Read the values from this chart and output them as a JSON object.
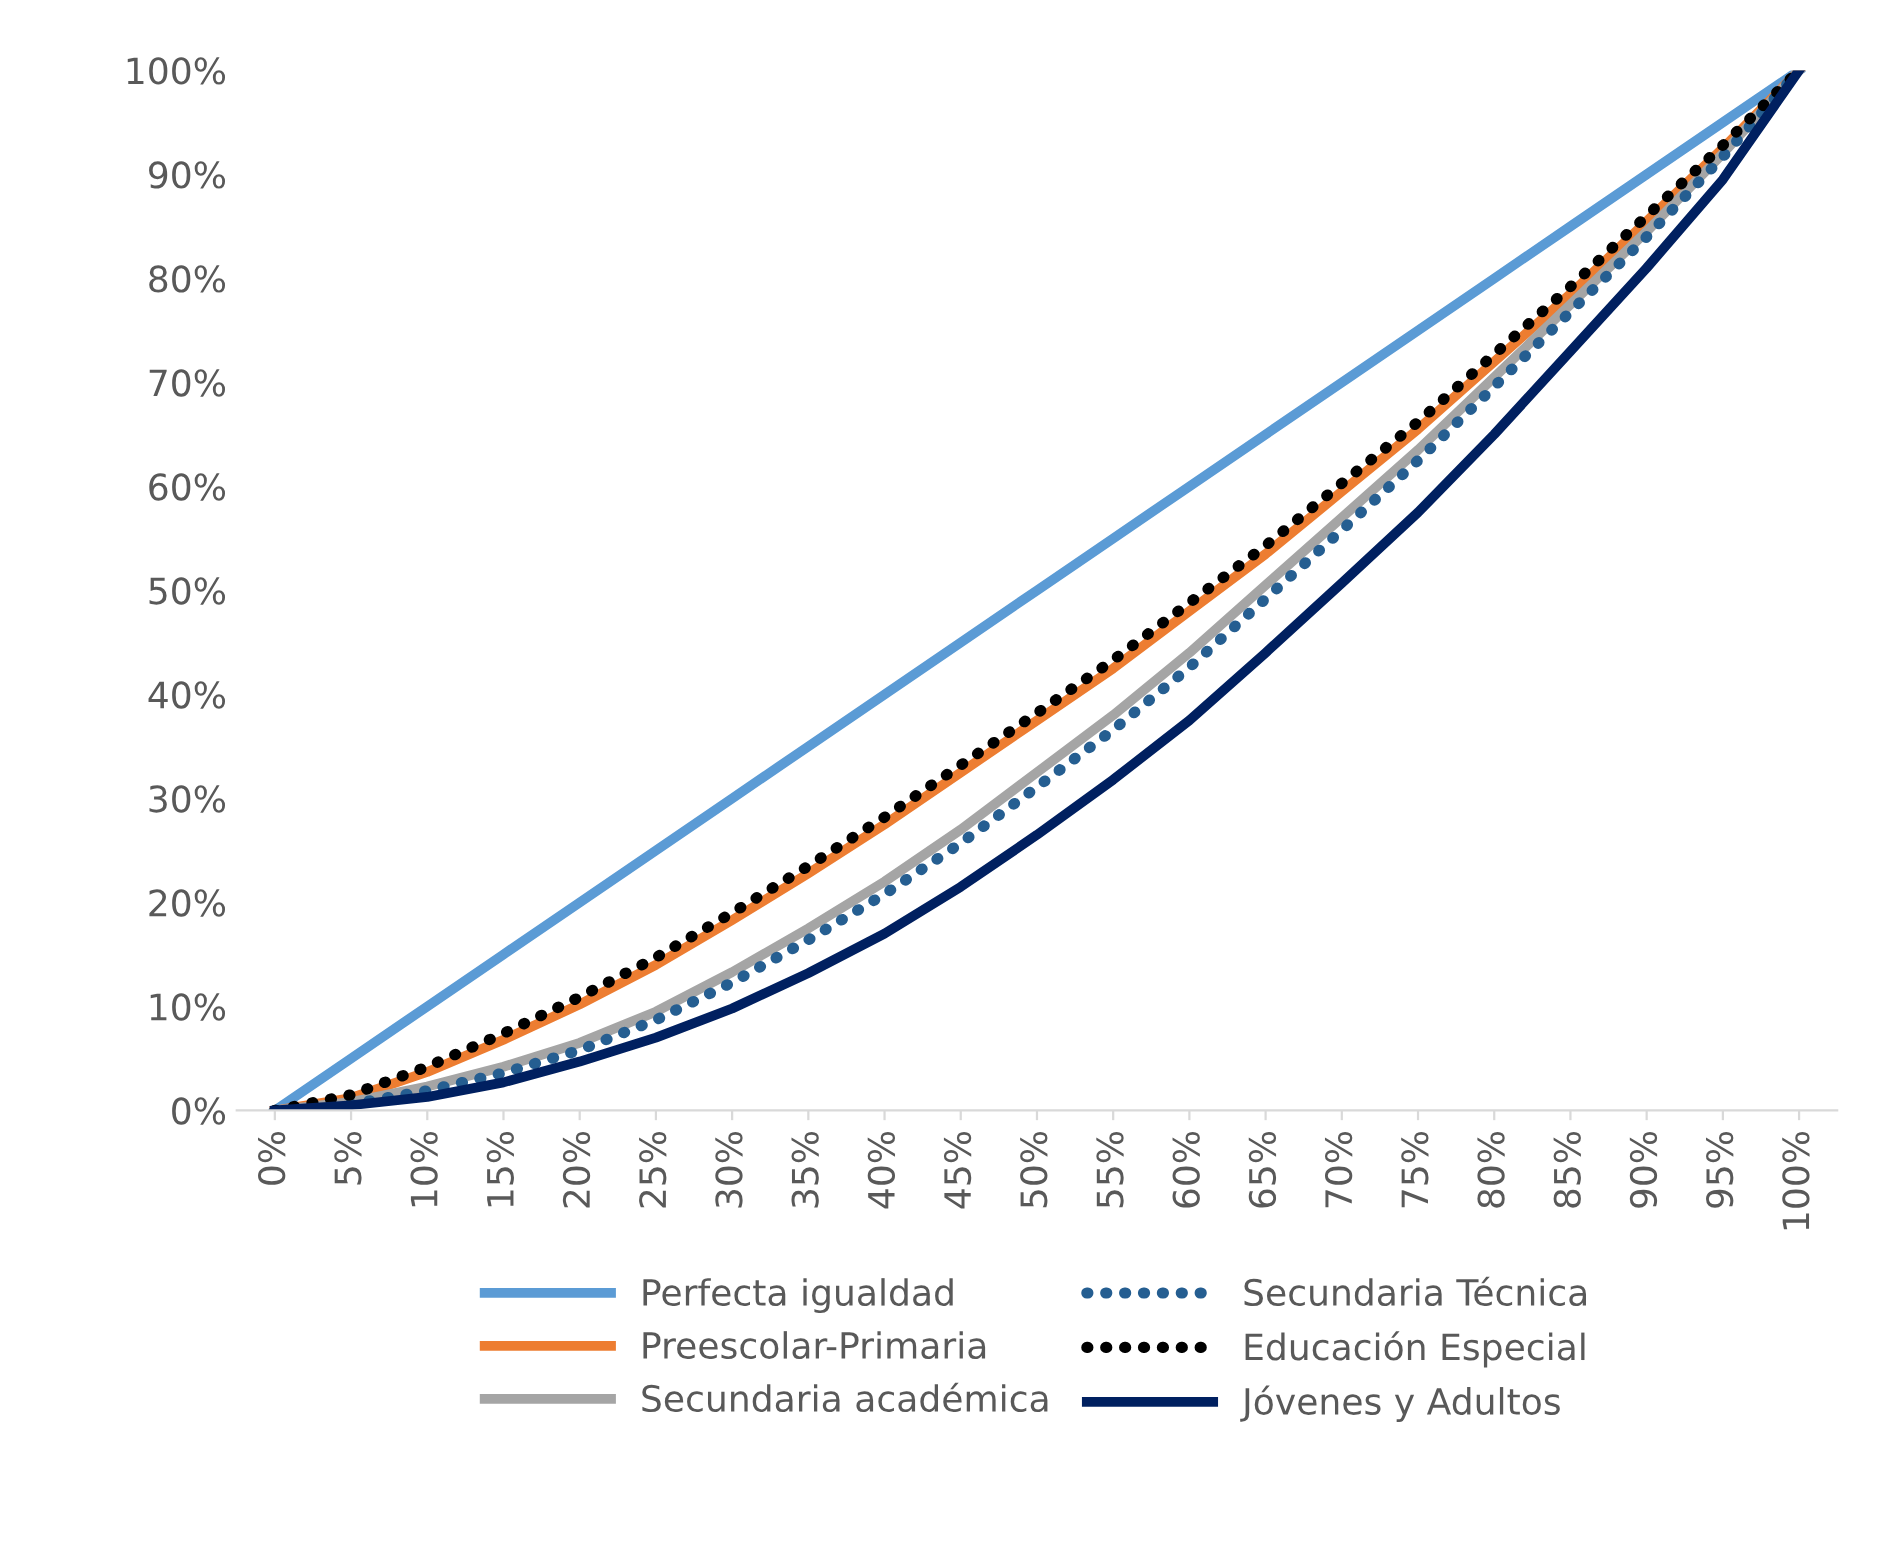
{
  "chart_data": {
    "type": "line",
    "categories": [
      "0%",
      "5%",
      "10%",
      "15%",
      "20%",
      "25%",
      "30%",
      "35%",
      "40%",
      "45%",
      "50%",
      "55%",
      "60%",
      "65%",
      "70%",
      "75%",
      "80%",
      "85%",
      "90%",
      "95%",
      "100%"
    ],
    "ylim": [
      0,
      100
    ],
    "yticks": [
      {
        "value": 0,
        "label": "0%"
      },
      {
        "value": 10,
        "label": "10%"
      },
      {
        "value": 20,
        "label": "20%"
      },
      {
        "value": 30,
        "label": "30%"
      },
      {
        "value": 40,
        "label": "40%"
      },
      {
        "value": 50,
        "label": "50%"
      },
      {
        "value": 60,
        "label": "60%"
      },
      {
        "value": 70,
        "label": "70%"
      },
      {
        "value": 80,
        "label": "80%"
      },
      {
        "value": 90,
        "label": "90%"
      },
      {
        "value": 100,
        "label": "100%"
      }
    ],
    "grid": false,
    "legend": "bottom",
    "marker": "none",
    "series": [
      {
        "name": "Perfecta igualdad",
        "color": "#5b9bd5",
        "line_style": "solid",
        "values": [
          0,
          5,
          10,
          15,
          20,
          25,
          30,
          35,
          40,
          45,
          50,
          55,
          60,
          65,
          70,
          75,
          80,
          85,
          90,
          95,
          100
        ]
      },
      {
        "name": "Preescolar-Primaria",
        "color": "#ed7d31",
        "line_style": "solid",
        "values": [
          0,
          1.2,
          3.7,
          6.8,
          10.2,
          14,
          18.3,
          22.8,
          27.5,
          32.5,
          37.5,
          42.5,
          48,
          53.5,
          59.5,
          65.5,
          72,
          78.5,
          85.5,
          92.5,
          100
        ]
      },
      {
        "name": "Secundaria académica",
        "color": "#a5a5a5",
        "line_style": "solid",
        "values": [
          0,
          0.8,
          2.3,
          4.2,
          6.5,
          9.5,
          13.3,
          17.5,
          22,
          27,
          32.5,
          38,
          44,
          50.5,
          57,
          63.5,
          70.5,
          77.5,
          84.5,
          92,
          100
        ]
      },
      {
        "name": "Secundaria Técnica",
        "color": "#255e91",
        "line_style": "dotted",
        "values": [
          0,
          0.6,
          1.9,
          3.6,
          5.8,
          8.7,
          12.3,
          16.4,
          20.8,
          25.7,
          31.1,
          36.6,
          42.6,
          49.2,
          55.8,
          62.5,
          69.6,
          76.8,
          84,
          91.7,
          100
        ]
      },
      {
        "name": "Educación Especial",
        "color": "#000000",
        "line_style": "dotted",
        "values": [
          0,
          1.5,
          4.2,
          7.4,
          10.9,
          14.7,
          19,
          23.5,
          28.2,
          33.2,
          38.2,
          43.3,
          48.8,
          54.3,
          60.3,
          66.2,
          72.7,
          79.2,
          86,
          92.8,
          100
        ]
      },
      {
        "name": "Jóvenes y Adultos",
        "color": "#002060",
        "line_style": "solid",
        "values": [
          0,
          0.5,
          1.3,
          2.7,
          4.7,
          7,
          9.8,
          13.2,
          17,
          21.5,
          26.5,
          31.8,
          37.5,
          44,
          50.7,
          57.5,
          65,
          73,
          81,
          89.5,
          100
        ]
      }
    ]
  }
}
